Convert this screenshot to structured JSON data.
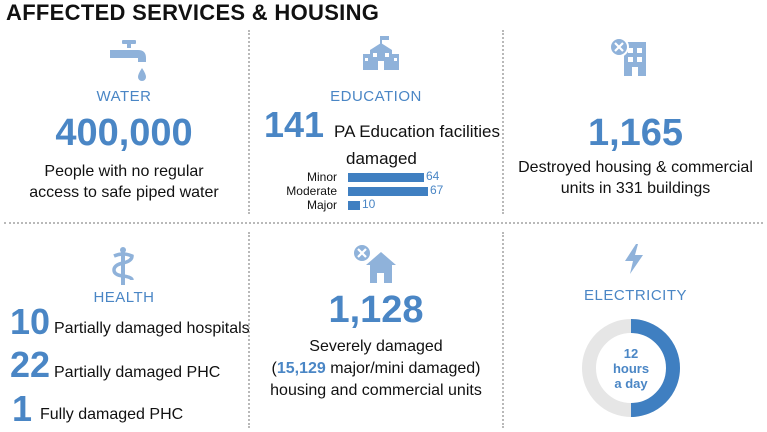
{
  "title": "AFFECTED SERVICES & HOUSING",
  "colors": {
    "accent": "#4a86c5",
    "bar": "#3f7fc1",
    "donut_track": "#e6e6e6",
    "divider": "#b9b9b9"
  },
  "water": {
    "icon": "faucet-icon",
    "label": "WATER",
    "value": "400,000",
    "line1": "People with no regular",
    "line2": "access to safe piped water"
  },
  "education": {
    "icon": "school-icon",
    "label": "EDUCATION",
    "value": "141",
    "line1": "PA Education facilities",
    "line2": "damaged",
    "chart_data": {
      "type": "bar",
      "categories": [
        "Minor",
        "Moderate",
        "Major"
      ],
      "values": [
        64,
        67,
        10
      ]
    }
  },
  "destroyed": {
    "icon": "destroyed-building-icon",
    "value": "1,165",
    "line1": "Destroyed housing & commercial",
    "line2": "units in 331 buildings"
  },
  "health": {
    "icon": "caduceus-icon",
    "label": "HEALTH",
    "items": [
      {
        "value": "10",
        "text": "Partially damaged hospitals"
      },
      {
        "value": "22",
        "text": "Partially damaged PHC"
      },
      {
        "value": "1",
        "text": "Fully damaged PHC"
      }
    ]
  },
  "severe": {
    "icon": "damaged-house-icon",
    "value": "1,128",
    "line1": "Severely damaged",
    "line2_pre": "(",
    "line2_num": "15,129",
    "line2_post": " major/mini damaged)",
    "line3": "housing and commercial units"
  },
  "electricity": {
    "icon": "lightning-icon",
    "label": "ELECTRICITY",
    "hours": "12",
    "unit": "hours",
    "per": "a day",
    "fraction": 0.5
  }
}
